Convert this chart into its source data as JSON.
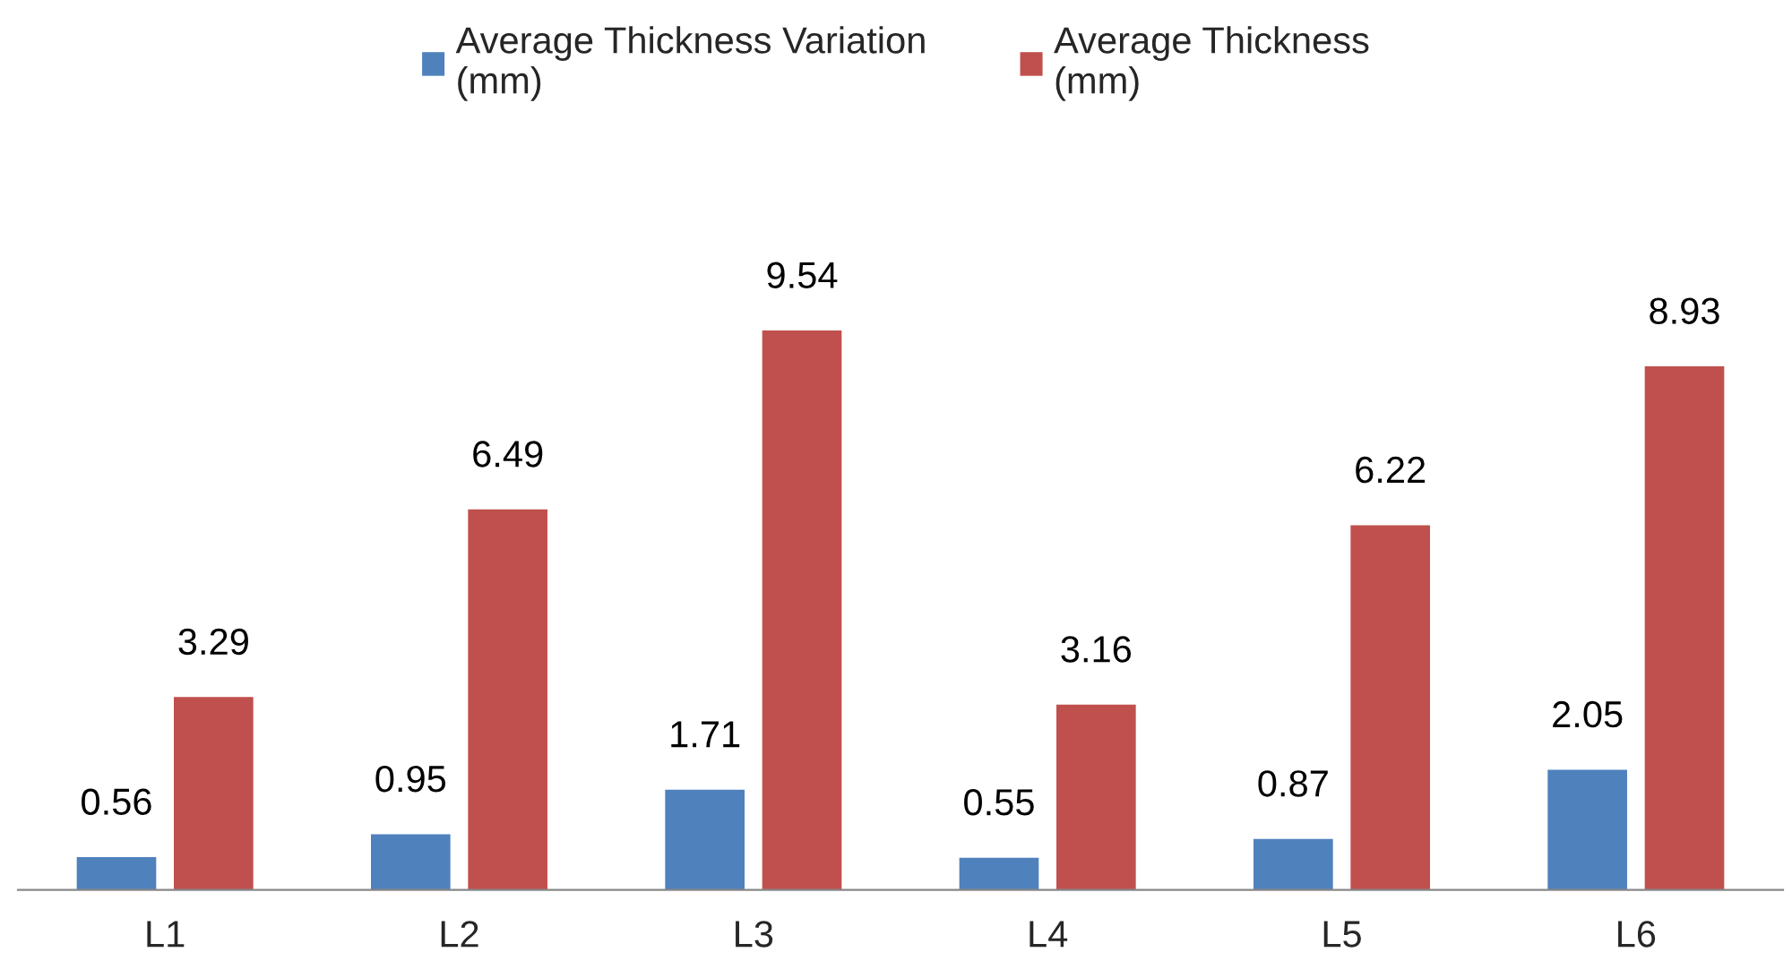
{
  "chart_data": {
    "type": "bar",
    "categories": [
      "L1",
      "L2",
      "L3",
      "L4",
      "L5",
      "L6"
    ],
    "series": [
      {
        "name": "Average Thickness Variation\n(mm)",
        "color": "#4f81bd",
        "values": [
          0.56,
          0.95,
          1.71,
          0.55,
          0.87,
          2.05
        ]
      },
      {
        "name": "Average Thickness\n(mm)",
        "color": "#c0504d",
        "values": [
          3.29,
          6.49,
          9.54,
          3.16,
          6.22,
          8.93
        ]
      }
    ],
    "data_labels": true,
    "legend": "top",
    "grid": false
  }
}
